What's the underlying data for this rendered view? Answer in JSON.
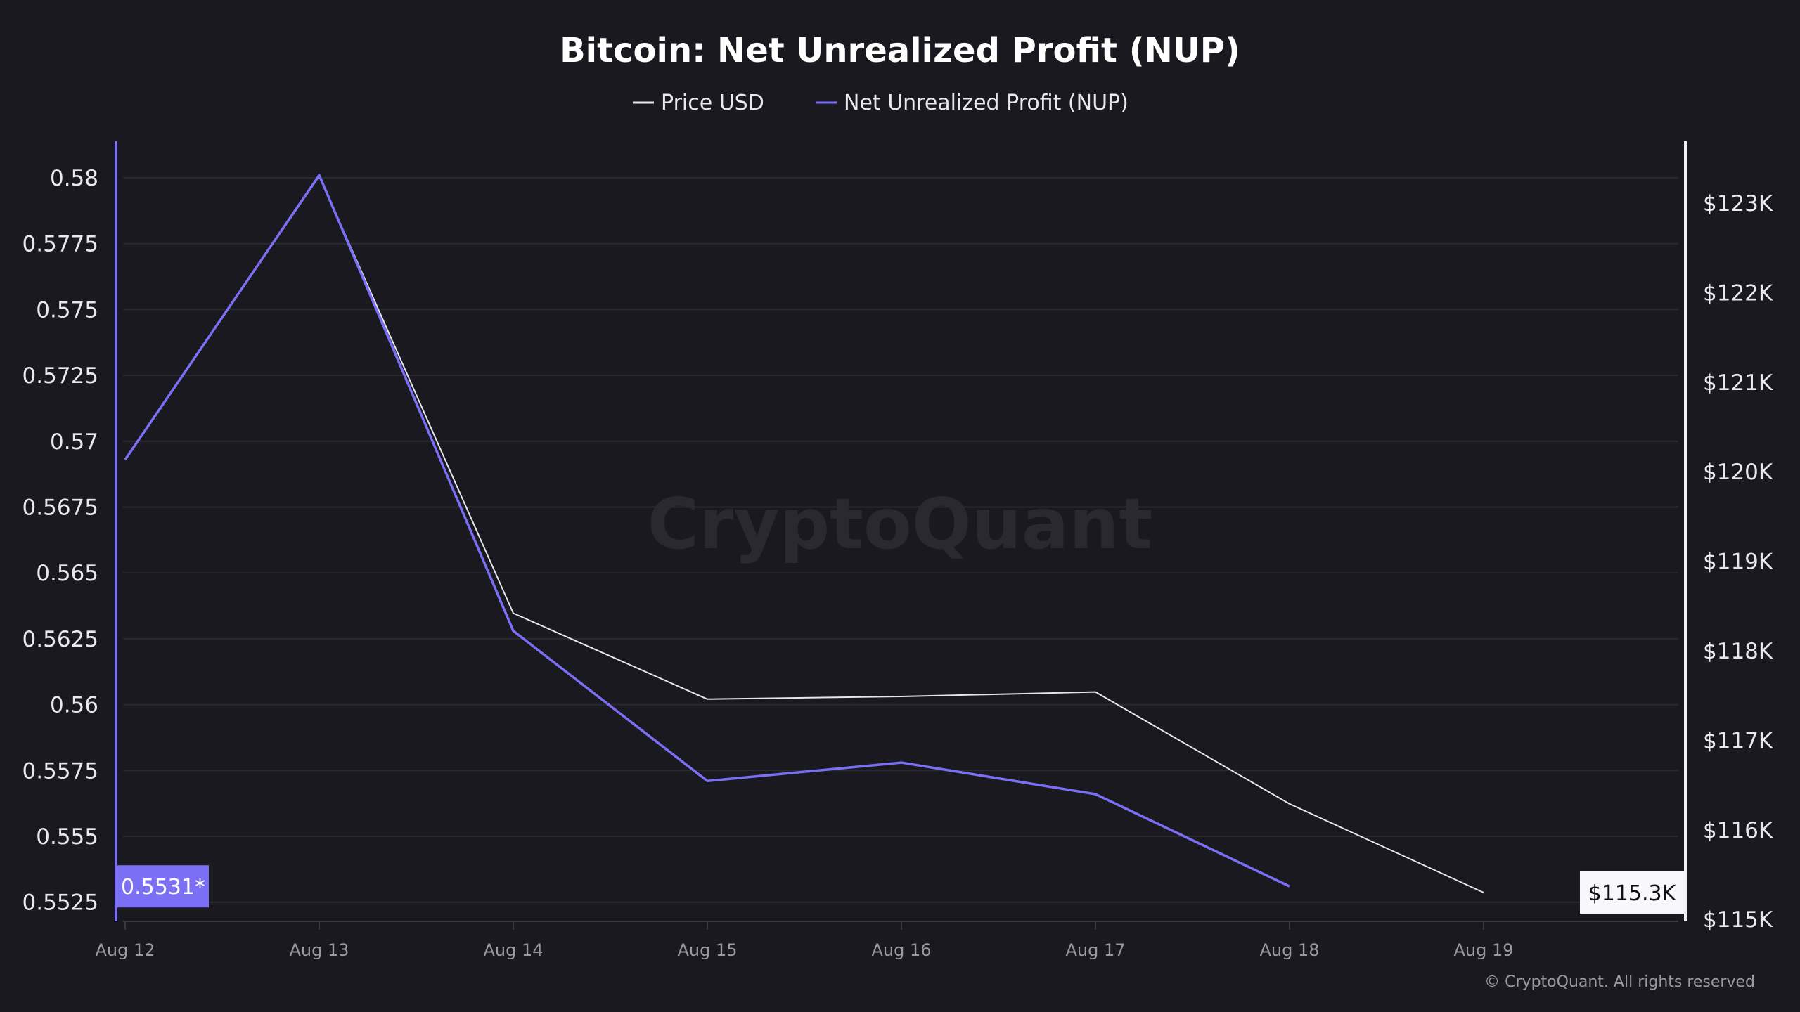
{
  "chart_data": {
    "type": "line",
    "title": "Bitcoin: Net Unrealized Profit (NUP)",
    "legend_placement": "top-center",
    "grid": true,
    "categories": [
      "Aug 12",
      "Aug 13",
      "Aug 14",
      "Aug 15",
      "Aug 16",
      "Aug 17",
      "Aug 18",
      "Aug 19"
    ],
    "series": [
      {
        "name": "Price USD",
        "axis": "right",
        "color": "#e6e6ee",
        "values": [
          120140,
          123300,
          118420,
          117460,
          117490,
          117540,
          116290,
          115300
        ]
      },
      {
        "name": "Net Unrealized Profit (NUP)",
        "axis": "left",
        "color": "#7b6ff5",
        "values": [
          0.5693,
          0.5801,
          0.5628,
          0.5571,
          0.5578,
          0.5566,
          0.5531,
          null
        ]
      }
    ],
    "left_axis": {
      "ylim": [
        0.5525,
        0.58
      ],
      "ticks": [
        "0.58",
        "0.5775",
        "0.575",
        "0.5725",
        "0.57",
        "0.5675",
        "0.565",
        "0.5625",
        "0.56",
        "0.5575",
        "0.555",
        "0.5525"
      ],
      "current_label": "0.5531*"
    },
    "right_axis": {
      "ylim": [
        115000,
        123000
      ],
      "ticks": [
        "$123K",
        "$122K",
        "$121K",
        "$120K",
        "$119K",
        "$118K",
        "$117K",
        "$116K",
        "$115K"
      ],
      "current_label": "$115.3K"
    },
    "watermark": "CryptoQuant",
    "footer": "© CryptoQuant. All rights reserved"
  }
}
